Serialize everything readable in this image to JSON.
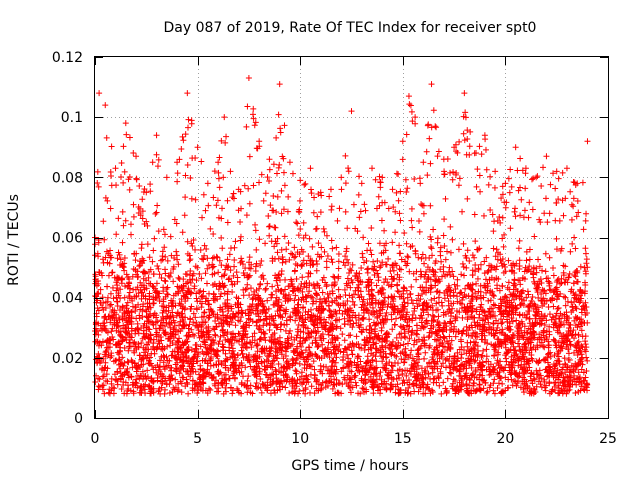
{
  "chart_data": {
    "type": "scatter",
    "title": "Day 087 of 2019, Rate Of TEC Index for receiver spt0",
    "xlabel": "GPS time / hours",
    "ylabel": "ROTI / TECUs",
    "xlim": [
      0,
      25
    ],
    "ylim": [
      0,
      0.12
    ],
    "xticks": [
      0,
      5,
      10,
      15,
      20,
      25
    ],
    "xtick_labels": [
      "0",
      "5",
      "10",
      "15",
      "20",
      "25"
    ],
    "yticks": [
      0,
      0.02,
      0.04,
      0.06,
      0.08,
      0.1,
      0.12
    ],
    "ytick_labels": [
      "0",
      "0.02",
      "0.04",
      "0.06",
      "0.08",
      "0.1",
      "0.12"
    ],
    "grid": true,
    "marker": "+",
    "series": [
      {
        "name": "ROTI",
        "color": "#ff0000",
        "x_range": [
          0,
          24
        ],
        "typical_range": [
          0.008,
          0.06
        ],
        "upper_envelope": [
          [
            0.0,
            0.06
          ],
          [
            0.2,
            0.108
          ],
          [
            0.5,
            0.104
          ],
          [
            1.0,
            0.083
          ],
          [
            1.5,
            0.098
          ],
          [
            2.0,
            0.087
          ],
          [
            2.5,
            0.075
          ],
          [
            3.0,
            0.094
          ],
          [
            3.5,
            0.08
          ],
          [
            4.0,
            0.085
          ],
          [
            4.5,
            0.108
          ],
          [
            5.0,
            0.09
          ],
          [
            5.5,
            0.078
          ],
          [
            6.0,
            0.085
          ],
          [
            6.3,
            0.1
          ],
          [
            6.6,
            0.082
          ],
          [
            7.0,
            0.076
          ],
          [
            7.5,
            0.113
          ],
          [
            8.0,
            0.092
          ],
          [
            8.5,
            0.086
          ],
          [
            9.0,
            0.111
          ],
          [
            9.5,
            0.085
          ],
          [
            10.0,
            0.079
          ],
          [
            10.5,
            0.083
          ],
          [
            11.0,
            0.075
          ],
          [
            11.5,
            0.076
          ],
          [
            12.0,
            0.08
          ],
          [
            12.5,
            0.102
          ],
          [
            13.0,
            0.078
          ],
          [
            13.5,
            0.083
          ],
          [
            14.0,
            0.08
          ],
          [
            14.5,
            0.076
          ],
          [
            15.0,
            0.092
          ],
          [
            15.3,
            0.107
          ],
          [
            15.6,
            0.1
          ],
          [
            16.0,
            0.085
          ],
          [
            16.4,
            0.111
          ],
          [
            17.0,
            0.086
          ],
          [
            17.5,
            0.09
          ],
          [
            18.0,
            0.108
          ],
          [
            18.5,
            0.088
          ],
          [
            19.0,
            0.094
          ],
          [
            19.5,
            0.082
          ],
          [
            20.0,
            0.078
          ],
          [
            20.5,
            0.09
          ],
          [
            21.0,
            0.083
          ],
          [
            21.5,
            0.08
          ],
          [
            22.0,
            0.087
          ],
          [
            22.5,
            0.082
          ],
          [
            23.0,
            0.083
          ],
          [
            23.5,
            0.078
          ],
          [
            24.0,
            0.092
          ]
        ]
      }
    ]
  }
}
